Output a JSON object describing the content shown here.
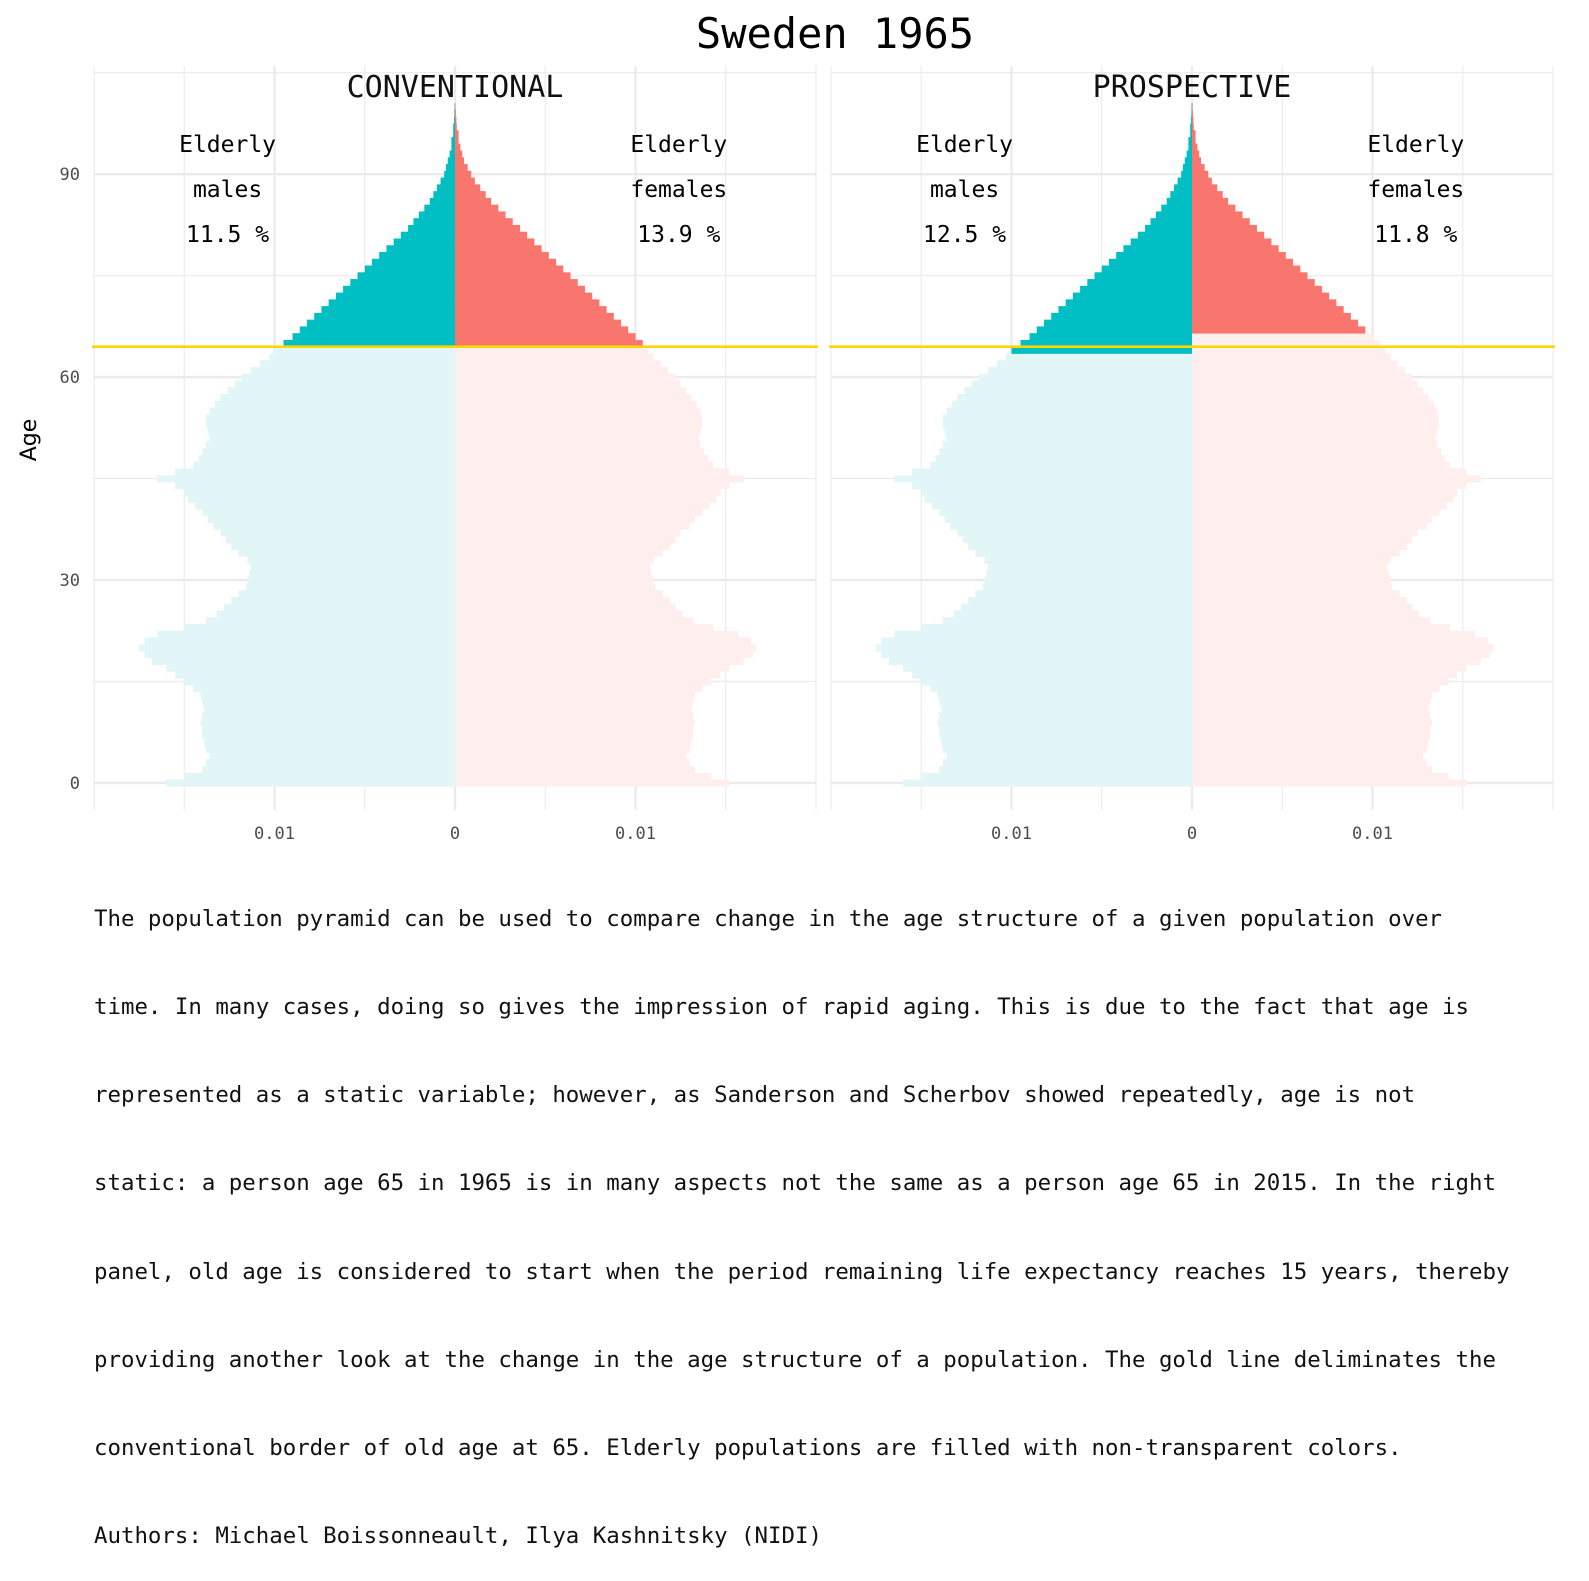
{
  "title": "Sweden 1965",
  "y_axis_label": "Age",
  "colors": {
    "male": "#00BFC4",
    "female": "#F8766D",
    "male_light": "#E2F6F7",
    "female_light": "#FEEFEE",
    "gold_line": "#FFD700",
    "grid": "#EBEBEB"
  },
  "caption_lines": [
    "The population pyramid can be used to compare change in the age structure of a given population over",
    "time. In many cases, doing so gives the impression of rapid aging. This is due to the fact that age is",
    "represented as a static variable; however, as Sanderson and Scherbov showed repeatedly, age is not",
    "static: a person age 65 in 1965 is in many aspects not the same as a person age 65 in 2015. In the right",
    "panel, old age is considered to start when the period remaining life expectancy reaches 15 years, thereby",
    "providing another look at the change in the age structure of a population. The gold line deliminates the",
    "conventional border of old age at 65. Elderly populations are filled with non-transparent colors.",
    "Authors: Michael Boissonneault, Ilya Kashnitsky (NIDI)"
  ],
  "chart_data": {
    "type": "bar",
    "orientation": "horizontal-pyramid",
    "y_ticks": [
      0,
      30,
      60,
      90
    ],
    "x_tick_labels": [
      "0.01",
      "0",
      "0.01"
    ],
    "x_ticks": [
      -0.01,
      0,
      0.01
    ],
    "xlim": [
      -0.02,
      0.02
    ],
    "ylim": [
      -4,
      106
    ],
    "conventional_old_age_threshold": 65,
    "ages": [
      0,
      1,
      2,
      3,
      4,
      5,
      6,
      7,
      8,
      9,
      10,
      11,
      12,
      13,
      14,
      15,
      16,
      17,
      18,
      19,
      20,
      21,
      22,
      23,
      24,
      25,
      26,
      27,
      28,
      29,
      30,
      31,
      32,
      33,
      34,
      35,
      36,
      37,
      38,
      39,
      40,
      41,
      42,
      43,
      44,
      45,
      46,
      47,
      48,
      49,
      50,
      51,
      52,
      53,
      54,
      55,
      56,
      57,
      58,
      59,
      60,
      61,
      62,
      63,
      64,
      65,
      66,
      67,
      68,
      69,
      70,
      71,
      72,
      73,
      74,
      75,
      76,
      77,
      78,
      79,
      80,
      81,
      82,
      83,
      84,
      85,
      86,
      87,
      88,
      89,
      90,
      91,
      92,
      93,
      94,
      95,
      96,
      97,
      98,
      99,
      100
    ],
    "males": [
      0.016,
      0.015,
      0.014,
      0.0138,
      0.0136,
      0.0138,
      0.0139,
      0.014,
      0.014,
      0.0141,
      0.014,
      0.0139,
      0.014,
      0.0141,
      0.0145,
      0.015,
      0.0155,
      0.016,
      0.0168,
      0.0172,
      0.0175,
      0.0172,
      0.0165,
      0.015,
      0.0138,
      0.0132,
      0.0128,
      0.0124,
      0.012,
      0.0116,
      0.0115,
      0.0114,
      0.0113,
      0.0115,
      0.012,
      0.0124,
      0.0127,
      0.013,
      0.0134,
      0.0137,
      0.014,
      0.0144,
      0.0148,
      0.015,
      0.0155,
      0.0165,
      0.0155,
      0.0145,
      0.0142,
      0.014,
      0.0138,
      0.0136,
      0.0137,
      0.0138,
      0.0138,
      0.0136,
      0.0133,
      0.013,
      0.0126,
      0.0122,
      0.0118,
      0.0113,
      0.0108,
      0.0103,
      0.01,
      0.0095,
      0.009,
      0.0086,
      0.0082,
      0.0078,
      0.0074,
      0.007,
      0.0066,
      0.0062,
      0.0058,
      0.0054,
      0.005,
      0.0046,
      0.0042,
      0.0038,
      0.0034,
      0.003,
      0.0026,
      0.0023,
      0.002,
      0.0017,
      0.0014,
      0.0012,
      0.001,
      0.0008,
      0.0006,
      0.0005,
      0.0004,
      0.0003,
      0.0002,
      0.0002,
      0.0001,
      0.0001,
      5e-05,
      3e-05,
      2e-05
    ],
    "females": [
      0.0152,
      0.0142,
      0.0133,
      0.013,
      0.0128,
      0.013,
      0.0131,
      0.0132,
      0.0132,
      0.0133,
      0.0132,
      0.0131,
      0.0132,
      0.0133,
      0.0137,
      0.0142,
      0.0147,
      0.0152,
      0.016,
      0.0165,
      0.0167,
      0.0164,
      0.0157,
      0.0143,
      0.0132,
      0.0126,
      0.0122,
      0.0119,
      0.0115,
      0.0111,
      0.011,
      0.0109,
      0.0108,
      0.011,
      0.0115,
      0.0119,
      0.0122,
      0.0125,
      0.013,
      0.0133,
      0.0137,
      0.0141,
      0.0145,
      0.0147,
      0.0152,
      0.016,
      0.0152,
      0.0143,
      0.014,
      0.0138,
      0.0136,
      0.0135,
      0.0136,
      0.0137,
      0.0137,
      0.0136,
      0.0134,
      0.0131,
      0.0128,
      0.0125,
      0.0122,
      0.0118,
      0.0114,
      0.011,
      0.0107,
      0.0104,
      0.01,
      0.0096,
      0.0092,
      0.0088,
      0.0084,
      0.008,
      0.0076,
      0.0072,
      0.0068,
      0.0064,
      0.006,
      0.0056,
      0.0052,
      0.0048,
      0.0044,
      0.004,
      0.0036,
      0.0032,
      0.0028,
      0.0024,
      0.002,
      0.0017,
      0.0014,
      0.0011,
      0.0009,
      0.0007,
      0.0005,
      0.0004,
      0.0003,
      0.0002,
      0.0002,
      0.0001,
      8e-05,
      5e-05,
      3e-05
    ],
    "panels": [
      {
        "title": "CONVENTIONAL",
        "male_old_age_start": 65,
        "female_old_age_start": 65,
        "annotations": {
          "male_line1": "Elderly",
          "male_line2": "males",
          "male_pct": "11.5 %",
          "female_line1": "Elderly",
          "female_line2": "females",
          "female_pct": "13.9 %"
        }
      },
      {
        "title": "PROSPECTIVE",
        "male_old_age_start": 64,
        "female_old_age_start": 67,
        "annotations": {
          "male_line1": "Elderly",
          "male_line2": "males",
          "male_pct": "12.5 %",
          "female_line1": "Elderly",
          "female_line2": "females",
          "female_pct": "11.8 %"
        }
      }
    ]
  }
}
